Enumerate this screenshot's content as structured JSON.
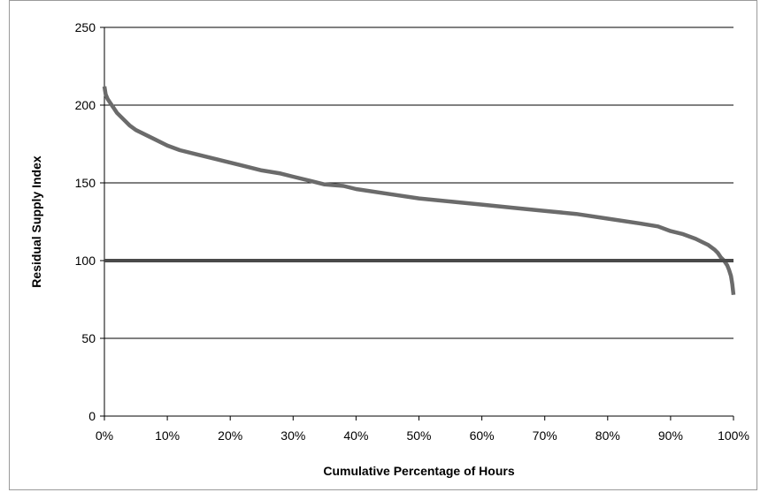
{
  "chart_data": {
    "type": "line",
    "title": "",
    "xlabel": "Cumulative Percentage of Hours",
    "ylabel": "Residual Supply Index",
    "xlim": [
      0,
      100
    ],
    "ylim": [
      0,
      250
    ],
    "x_ticks": [
      0,
      10,
      20,
      30,
      40,
      50,
      60,
      70,
      80,
      90,
      100
    ],
    "x_tick_labels": [
      "0%",
      "10%",
      "20%",
      "30%",
      "40%",
      "50%",
      "60%",
      "70%",
      "80%",
      "90%",
      "100%"
    ],
    "y_ticks": [
      0,
      50,
      100,
      150,
      200,
      250
    ],
    "y_tick_labels": [
      "0",
      "50",
      "100",
      "150",
      "200",
      "250"
    ],
    "grid": "horizontal",
    "legend": "none",
    "colors": {
      "curve": "#6b6b6b",
      "threshold": "#4a4a4a",
      "grid": "#000000"
    },
    "series": [
      {
        "values_x": [
          0,
          0.2,
          0.5,
          1,
          1.5,
          2,
          3,
          4,
          5,
          6,
          7,
          8,
          10,
          12,
          15,
          18,
          20,
          22,
          25,
          28,
          30,
          33,
          35,
          38,
          40,
          45,
          50,
          55,
          60,
          65,
          70,
          75,
          80,
          85,
          88,
          90,
          92,
          94,
          95,
          96,
          97,
          97.5,
          98,
          98.5,
          99,
          99.3,
          99.6,
          99.8,
          100
        ],
        "values_y": [
          212,
          207,
          204,
          201,
          198,
          195,
          191,
          187,
          184,
          182,
          180,
          178,
          174,
          171,
          168,
          165,
          163,
          161,
          158,
          156,
          154,
          151,
          149,
          148,
          146,
          143,
          140,
          138,
          136,
          134,
          132,
          130,
          127,
          124,
          122,
          119,
          117,
          114,
          112,
          110,
          107,
          105,
          102,
          100,
          97,
          94,
          90,
          85,
          78
        ]
      },
      {
        "values_x": [
          0,
          100
        ],
        "values_y": [
          100,
          100
        ]
      }
    ]
  }
}
